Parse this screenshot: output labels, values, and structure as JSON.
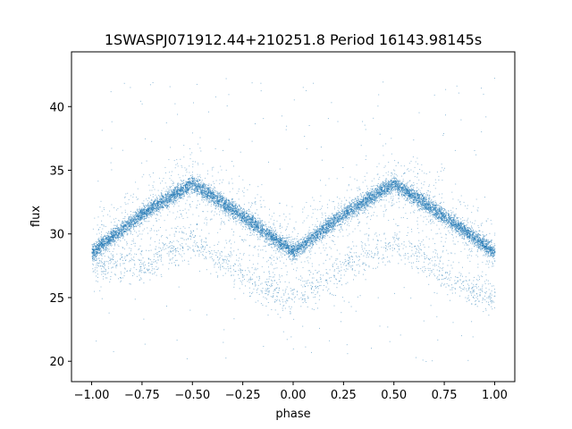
{
  "chart_data": {
    "type": "scatter",
    "title": "1SWASPJ071912.44+210251.8 Period 16143.98145s",
    "xlabel": "phase",
    "ylabel": "flux",
    "xlim": [
      -1.1,
      1.1
    ],
    "ylim": [
      18.4,
      44.3
    ],
    "xticks": [
      -1.0,
      -0.75,
      -0.5,
      -0.25,
      0.0,
      0.25,
      0.5,
      0.75,
      1.0
    ],
    "xtick_labels": [
      "−1.00",
      "−0.75",
      "−0.50",
      "−0.25",
      "0.00",
      "0.25",
      "0.50",
      "0.75",
      "1.00"
    ],
    "yticks": [
      20,
      25,
      30,
      35,
      40
    ],
    "ytick_labels": [
      "20",
      "25",
      "30",
      "35",
      "40"
    ],
    "grid": false,
    "marker_color": "#1f77b4",
    "series": [
      {
        "phase_range": [
          -1.0,
          1.0
        ],
        "curve_x": [
          -1.0,
          -0.75,
          -0.5,
          -0.25,
          0.0,
          0.25,
          0.5,
          0.75,
          1.0
        ],
        "curve_y": [
          28.6,
          31.6,
          34.0,
          31.4,
          28.6,
          31.6,
          34.0,
          31.4,
          28.6
        ],
        "scatter_band_width": 0.8,
        "low_branch_x": [
          -0.75,
          -0.5,
          -0.3,
          -0.15,
          0.0,
          0.25,
          0.5,
          0.7,
          0.85,
          1.0
        ],
        "low_branch_y": [
          27.5,
          29.5,
          27.5,
          25.8,
          25.0,
          27.5,
          29.5,
          27.5,
          25.8,
          25.0
        ],
        "outlier_y_range": [
          20.0,
          42.5
        ]
      }
    ]
  }
}
